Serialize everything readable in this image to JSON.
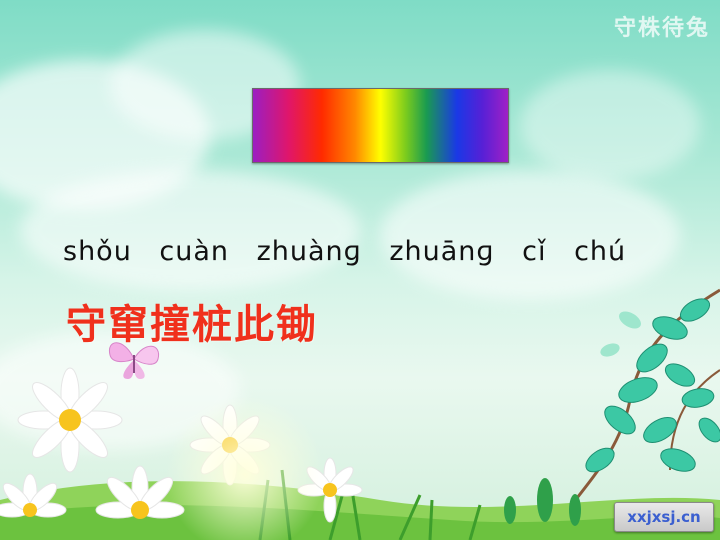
{
  "slide": {
    "watermark_title": "守株待兔",
    "pinyin_line": "shǒu cuàn zhuànɡ zhuānɡ cǐ chú",
    "hanzi_line": "守窜撞桩此锄",
    "logo_text": "xxjxsj.cn",
    "spectrum_colors": [
      "#9b1ec2",
      "#e0166a",
      "#ff2a00",
      "#ff8800",
      "#ffff00",
      "#7acb1e",
      "#1a9b50",
      "#1a38e6",
      "#5720d6",
      "#a020c6"
    ],
    "accent_color": "#f0301c"
  }
}
